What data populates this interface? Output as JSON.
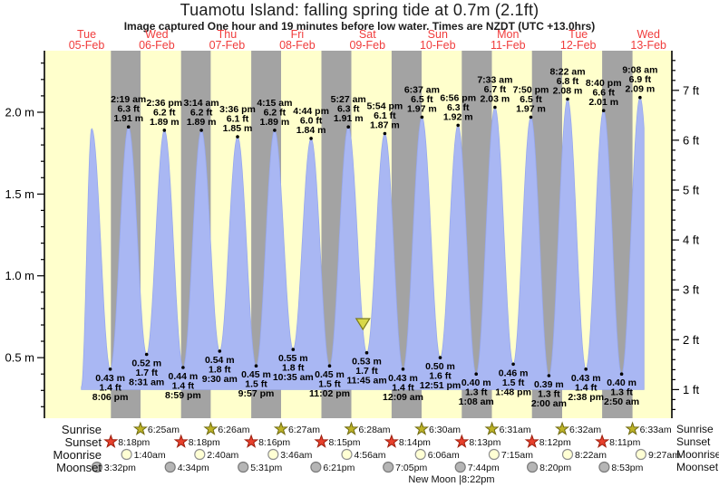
{
  "chart_data": {
    "type": "area",
    "title": "Tuamotu Island: falling  spring tide at 0.7m (2.1ft)",
    "subtitle": "Image captured One hour and 19 minutes before low water. Times are NZDT (UTC +13.0hrs)",
    "days": [
      {
        "dow": "Tue",
        "date": "05-Feb"
      },
      {
        "dow": "Wed",
        "date": "06-Feb"
      },
      {
        "dow": "Thu",
        "date": "07-Feb"
      },
      {
        "dow": "Fri",
        "date": "08-Feb"
      },
      {
        "dow": "Sat",
        "date": "09-Feb"
      },
      {
        "dow": "Sun",
        "date": "10-Feb"
      },
      {
        "dow": "Mon",
        "date": "11-Feb"
      },
      {
        "dow": "Tue",
        "date": "12-Feb"
      },
      {
        "dow": "Wed",
        "date": "13-Feb"
      }
    ],
    "ylabel_left_unit": "m",
    "ylabel_right_unit": "ft",
    "left_tick_labels": [
      "0.5 m",
      "1.0 m",
      "1.5 m",
      "2.0 m"
    ],
    "right_tick_labels": [
      "1 ft",
      "2 ft",
      "3 ft",
      "4 ft",
      "5 ft",
      "6 ft",
      "7 ft"
    ],
    "time_range_hours": [
      -2.4,
      212.0
    ],
    "curve_draw_range_hours": [
      10.2,
      202.5
    ],
    "ylim_m": [
      0.13,
      2.376
    ],
    "baseline_m": 0.305,
    "tide_events": [
      {
        "t": 10.2,
        "type": "low",
        "m": 0.32,
        "annotated": false
      },
      {
        "t": 13.75,
        "type": "high",
        "m": 1.9,
        "annotated": false
      },
      {
        "t": 20.1,
        "type": "low",
        "m": 0.43,
        "annotated": true,
        "m_label": "0.43 m",
        "ft": "1.4 ft",
        "time": "8:06 pm"
      },
      {
        "t": 26.32,
        "type": "high",
        "m": 1.91,
        "annotated": true,
        "m_label": "1.91 m",
        "ft": "6.3 ft",
        "time": "2:19 am"
      },
      {
        "t": 32.52,
        "type": "low",
        "m": 0.52,
        "annotated": true,
        "m_label": "0.52 m",
        "ft": "1.7 ft",
        "time": "8:31 am"
      },
      {
        "t": 38.6,
        "type": "high",
        "m": 1.89,
        "annotated": true,
        "m_label": "1.89 m",
        "ft": "6.2 ft",
        "time": "2:36 pm"
      },
      {
        "t": 44.98,
        "type": "low",
        "m": 0.44,
        "annotated": true,
        "m_label": "0.44 m",
        "ft": "1.4 ft",
        "time": "8:59 pm"
      },
      {
        "t": 51.23,
        "type": "high",
        "m": 1.89,
        "annotated": true,
        "m_label": "1.89 m",
        "ft": "6.2 ft",
        "time": "3:14 am"
      },
      {
        "t": 57.5,
        "type": "low",
        "m": 0.54,
        "annotated": true,
        "m_label": "0.54 m",
        "ft": "1.8 ft",
        "time": "9:30 am"
      },
      {
        "t": 63.6,
        "type": "high",
        "m": 1.85,
        "annotated": true,
        "m_label": "1.85 m",
        "ft": "6.1 ft",
        "time": "3:36 pm"
      },
      {
        "t": 69.95,
        "type": "low",
        "m": 0.45,
        "annotated": true,
        "m_label": "0.45 m",
        "ft": "1.5 ft",
        "time": "9:57 pm"
      },
      {
        "t": 76.25,
        "type": "high",
        "m": 1.89,
        "annotated": true,
        "m_label": "1.89 m",
        "ft": "6.2 ft",
        "time": "4:15 am"
      },
      {
        "t": 82.58,
        "type": "low",
        "m": 0.55,
        "annotated": true,
        "m_label": "0.55 m",
        "ft": "1.8 ft",
        "time": "10:35 am"
      },
      {
        "t": 88.73,
        "type": "high",
        "m": 1.84,
        "annotated": true,
        "m_label": "1.84 m",
        "ft": "6.0 ft",
        "time": "4:44 pm"
      },
      {
        "t": 95.03,
        "type": "low",
        "m": 0.45,
        "annotated": true,
        "m_label": "0.45 m",
        "ft": "1.5 ft",
        "time": "11:02 pm"
      },
      {
        "t": 101.45,
        "type": "high",
        "m": 1.91,
        "annotated": true,
        "m_label": "1.91 m",
        "ft": "6.3 ft",
        "time": "5:27 am"
      },
      {
        "t": 107.75,
        "type": "low",
        "m": 0.53,
        "annotated": true,
        "m_label": "0.53 m",
        "ft": "1.7 ft",
        "time": "11:45 am"
      },
      {
        "t": 113.9,
        "type": "high",
        "m": 1.87,
        "annotated": true,
        "m_label": "1.87 m",
        "ft": "6.1 ft",
        "time": "5:54 pm"
      },
      {
        "t": 120.15,
        "type": "low",
        "m": 0.43,
        "annotated": true,
        "m_label": "0.43 m",
        "ft": "1.4 ft",
        "time": "12:09 am"
      },
      {
        "t": 126.62,
        "type": "high",
        "m": 1.97,
        "annotated": true,
        "m_label": "1.97 m",
        "ft": "6.5 ft",
        "time": "6:37 am"
      },
      {
        "t": 132.85,
        "type": "low",
        "m": 0.5,
        "annotated": true,
        "m_label": "0.50 m",
        "ft": "1.6 ft",
        "time": "12:51 pm"
      },
      {
        "t": 138.93,
        "type": "high",
        "m": 1.92,
        "annotated": true,
        "m_label": "1.92 m",
        "ft": "6.3 ft",
        "time": "6:56 pm"
      },
      {
        "t": 145.13,
        "type": "low",
        "m": 0.4,
        "annotated": true,
        "m_label": "0.40 m",
        "ft": "1.3 ft",
        "time": "1:08 am"
      },
      {
        "t": 151.55,
        "type": "high",
        "m": 2.03,
        "annotated": true,
        "m_label": "2.03 m",
        "ft": "6.7 ft",
        "time": "7:33 am"
      },
      {
        "t": 157.8,
        "type": "low",
        "m": 0.46,
        "annotated": true,
        "m_label": "0.46 m",
        "ft": "1.5 ft",
        "time": "1:48 pm"
      },
      {
        "t": 163.83,
        "type": "high",
        "m": 1.97,
        "annotated": true,
        "m_label": "1.97 m",
        "ft": "6.5 ft",
        "time": "7:50 pm"
      },
      {
        "t": 170.0,
        "type": "low",
        "m": 0.39,
        "annotated": true,
        "m_label": "0.39 m",
        "ft": "1.3 ft",
        "time": "2:00 am"
      },
      {
        "t": 176.37,
        "type": "high",
        "m": 2.08,
        "annotated": true,
        "m_label": "2.08 m",
        "ft": "6.8 ft",
        "time": "8:22 am"
      },
      {
        "t": 182.63,
        "type": "low",
        "m": 0.43,
        "annotated": true,
        "m_label": "0.43 m",
        "ft": "1.4 ft",
        "time": "2:38 pm"
      },
      {
        "t": 188.67,
        "type": "high",
        "m": 2.01,
        "annotated": true,
        "m_label": "2.01 m",
        "ft": "6.6 ft",
        "time": "8:40 pm"
      },
      {
        "t": 194.83,
        "type": "low",
        "m": 0.4,
        "annotated": true,
        "m_label": "0.40 m",
        "ft": "1.3 ft",
        "time": "2:50 am"
      },
      {
        "t": 201.13,
        "type": "high",
        "m": 2.09,
        "annotated": true,
        "m_label": "2.09 m",
        "ft": "6.9 ft",
        "time": "9:08 am"
      },
      {
        "t": 207.4,
        "type": "low",
        "m": 0.45,
        "annotated": false
      }
    ],
    "marker": {
      "t": 106.43,
      "m": 0.7
    },
    "colors": {
      "day_band": "#ffffcc",
      "night_band": "#a3a3a3",
      "tide_fill": "#a9b7f3",
      "tide_edge": "#97a8ee",
      "day_label": "#f03c3c",
      "axis": "#000000",
      "annotation": "#000000",
      "marker_fill": "#d8d848",
      "marker_edge": "#7c7c1e",
      "sunrise_star": "#bdb327",
      "sunrise_star_edge": "#6f6a10",
      "sunset_star": "#e8402c",
      "sunset_star_edge": "#9c1d0c",
      "moonrise_fill": "#ffffd4",
      "moonrise_edge": "#8f8f8f",
      "moonset_fill": "#b5b5b5",
      "moonset_edge": "#7a7a7a"
    }
  },
  "ephemeris": {
    "rows": [
      {
        "key": "sunrise",
        "label": "Sunrise",
        "icon": "sunrise-star-icon",
        "entries": [
          {
            "t": 30.42,
            "time": "6:25am"
          },
          {
            "t": 54.43,
            "time": "6:26am"
          },
          {
            "t": 78.45,
            "time": "6:27am"
          },
          {
            "t": 102.47,
            "time": "6:28am"
          },
          {
            "t": 126.5,
            "time": "6:30am"
          },
          {
            "t": 150.52,
            "time": "6:31am"
          },
          {
            "t": 174.53,
            "time": "6:32am"
          },
          {
            "t": 198.55,
            "time": "6:33am"
          }
        ]
      },
      {
        "key": "sunset",
        "label": "Sunset",
        "icon": "sunset-star-icon",
        "entries": [
          {
            "t": 20.3,
            "time": "8:18pm"
          },
          {
            "t": 44.3,
            "time": "8:18pm"
          },
          {
            "t": 68.27,
            "time": "8:16pm"
          },
          {
            "t": 92.25,
            "time": "8:15pm"
          },
          {
            "t": 116.23,
            "time": "8:14pm"
          },
          {
            "t": 140.22,
            "time": "8:13pm"
          },
          {
            "t": 164.2,
            "time": "8:12pm"
          },
          {
            "t": 188.18,
            "time": "8:11pm"
          }
        ]
      },
      {
        "key": "moonrise",
        "label": "Moonrise",
        "icon": "moonrise-circle-icon",
        "entries": [
          {
            "t": 25.67,
            "time": "1:40am"
          },
          {
            "t": 50.67,
            "time": "2:40am"
          },
          {
            "t": 75.77,
            "time": "3:46am"
          },
          {
            "t": 100.93,
            "time": "4:56am"
          },
          {
            "t": 126.1,
            "time": "6:06am"
          },
          {
            "t": 151.25,
            "time": "7:15am"
          },
          {
            "t": 176.37,
            "time": "8:22am"
          },
          {
            "t": 201.45,
            "time": "9:27am"
          }
        ]
      },
      {
        "key": "moonset",
        "label": "Moonset",
        "icon": "moonset-circle-icon",
        "entries": [
          {
            "t": 15.53,
            "time": "3:32pm"
          },
          {
            "t": 40.57,
            "time": "4:34pm"
          },
          {
            "t": 65.52,
            "time": "5:31pm"
          },
          {
            "t": 90.35,
            "time": "6:21pm"
          },
          {
            "t": 115.08,
            "time": "7:05pm"
          },
          {
            "t": 139.73,
            "time": "7:44pm"
          },
          {
            "t": 164.33,
            "time": "8:20pm"
          },
          {
            "t": 188.88,
            "time": "8:53pm"
          }
        ]
      }
    ],
    "moon_phase": {
      "label": "New Moon |8:22pm"
    }
  }
}
